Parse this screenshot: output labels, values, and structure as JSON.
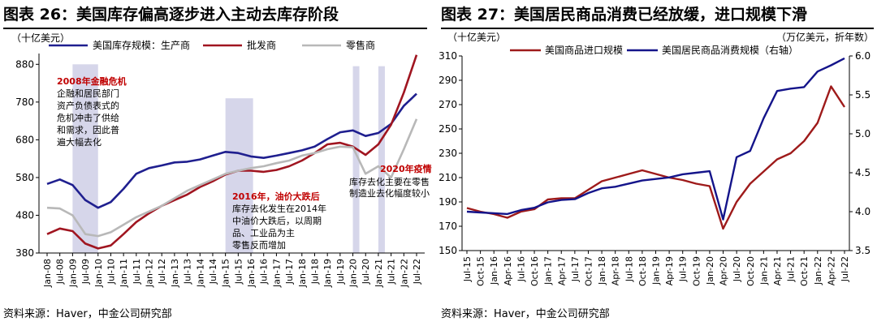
{
  "figures": [
    {
      "title": "图表 26：美国库存偏高逐步进入主动去库存阶段",
      "source": "资料来源：Haver，中金公司研究部"
    },
    {
      "title": "图表 27：美国居民商品消费已经放缓，进口规模下滑",
      "source": "资料来源：Haver，中金公司研究部"
    }
  ],
  "chart_data": [
    {
      "type": "line",
      "unit_label": "（十亿美元）",
      "ylim": [
        380,
        900
      ],
      "yticks": [
        380,
        480,
        580,
        680,
        780,
        880
      ],
      "x_range": [
        "Jan-08",
        "Jul-22"
      ],
      "xticks": [
        "Jan-08",
        "Jul-08",
        "Jan-09",
        "Jul-09",
        "Jan-10",
        "Jul-10",
        "Jan-11",
        "Jul-11",
        "Jan-12",
        "Jul-12",
        "Jan-13",
        "Jul-13",
        "Jan-14",
        "Jul-14",
        "Jan-15",
        "Jul-15",
        "Jan-16",
        "Jul-16",
        "Jan-17",
        "Jul-17",
        "Jan-18",
        "Jul-18",
        "Jan-19",
        "Jul-19",
        "Jan-20",
        "Jul-20",
        "Jan-21",
        "Jul-21",
        "Jan-22",
        "Jul-22"
      ],
      "shaded_periods": [
        [
          "Jan-09",
          "Jan-10"
        ],
        [
          "Jan-15",
          "Feb-16"
        ],
        [
          "Jan-20",
          "Apr-20"
        ],
        [
          "Jan-21",
          "Apr-21"
        ]
      ],
      "series": [
        {
          "name": "美国库存规模：生产商",
          "color": "#1f1f8f",
          "points": [
            [
              "Jan-08",
              563
            ],
            [
              "Jul-08",
              575
            ],
            [
              "Jan-09",
              560
            ],
            [
              "Jul-09",
              520
            ],
            [
              "Jan-10",
              500
            ],
            [
              "Jul-10",
              515
            ],
            [
              "Jan-11",
              550
            ],
            [
              "Jul-11",
              590
            ],
            [
              "Jan-12",
              605
            ],
            [
              "Jul-12",
              612
            ],
            [
              "Jan-13",
              620
            ],
            [
              "Jul-13",
              622
            ],
            [
              "Jan-14",
              628
            ],
            [
              "Jul-14",
              638
            ],
            [
              "Jan-15",
              648
            ],
            [
              "Jul-15",
              645
            ],
            [
              "Jan-16",
              636
            ],
            [
              "Jul-16",
              632
            ],
            [
              "Jan-17",
              638
            ],
            [
              "Jul-17",
              645
            ],
            [
              "Jan-18",
              652
            ],
            [
              "Jul-18",
              662
            ],
            [
              "Jan-19",
              682
            ],
            [
              "Jul-19",
              700
            ],
            [
              "Jan-20",
              705
            ],
            [
              "Jul-20",
              690
            ],
            [
              "Jan-21",
              698
            ],
            [
              "Jul-21",
              722
            ],
            [
              "Jan-22",
              770
            ],
            [
              "Jul-22",
              802
            ]
          ]
        },
        {
          "name": "批发商",
          "color": "#a01520",
          "points": [
            [
              "Jan-08",
              430
            ],
            [
              "Jul-08",
              445
            ],
            [
              "Jan-09",
              438
            ],
            [
              "Jul-09",
              405
            ],
            [
              "Jan-10",
              392
            ],
            [
              "Jul-10",
              400
            ],
            [
              "Jan-11",
              430
            ],
            [
              "Jul-11",
              462
            ],
            [
              "Jan-12",
              485
            ],
            [
              "Jul-12",
              505
            ],
            [
              "Jan-13",
              520
            ],
            [
              "Jul-13",
              535
            ],
            [
              "Jan-14",
              555
            ],
            [
              "Jul-14",
              570
            ],
            [
              "Jan-15",
              588
            ],
            [
              "Jul-15",
              598
            ],
            [
              "Jan-16",
              598
            ],
            [
              "Jul-16",
              595
            ],
            [
              "Jan-17",
              600
            ],
            [
              "Jul-17",
              610
            ],
            [
              "Jan-18",
              625
            ],
            [
              "Jul-18",
              645
            ],
            [
              "Jan-19",
              668
            ],
            [
              "Jul-19",
              672
            ],
            [
              "Jan-20",
              662
            ],
            [
              "Jul-20",
              640
            ],
            [
              "Jan-21",
              668
            ],
            [
              "Jul-21",
              720
            ],
            [
              "Jan-22",
              805
            ],
            [
              "Jul-22",
              905
            ]
          ]
        },
        {
          "name": "零售商",
          "color": "#b8b8b8",
          "points": [
            [
              "Jan-08",
              500
            ],
            [
              "Jul-08",
              498
            ],
            [
              "Jan-09",
              480
            ],
            [
              "Jul-09",
              430
            ],
            [
              "Jan-10",
              425
            ],
            [
              "Jul-10",
              435
            ],
            [
              "Jan-11",
              455
            ],
            [
              "Jul-11",
              475
            ],
            [
              "Jan-12",
              490
            ],
            [
              "Jul-12",
              505
            ],
            [
              "Jan-13",
              525
            ],
            [
              "Jul-13",
              545
            ],
            [
              "Jan-14",
              560
            ],
            [
              "Jul-14",
              575
            ],
            [
              "Jan-15",
              590
            ],
            [
              "Jul-15",
              598
            ],
            [
              "Jan-16",
              605
            ],
            [
              "Jul-16",
              610
            ],
            [
              "Jan-17",
              618
            ],
            [
              "Jul-17",
              625
            ],
            [
              "Jan-18",
              638
            ],
            [
              "Jul-18",
              645
            ],
            [
              "Jan-19",
              655
            ],
            [
              "Jul-19",
              662
            ],
            [
              "Jan-20",
              660
            ],
            [
              "Jul-20",
              590
            ],
            [
              "Jan-21",
              610
            ],
            [
              "Jul-21",
              580
            ],
            [
              "Jan-22",
              655
            ],
            [
              "Jul-22",
              735
            ]
          ]
        }
      ],
      "annotations": [
        {
          "title": "2008年金融危机",
          "lines": [
            "企融和居民部门",
            "资产负债表式的",
            "危机冲击了供给",
            "和需求，因此普",
            "遍大幅去化"
          ]
        },
        {
          "title": "2016年，油价大跌后",
          "lines": [
            "库存去化发生在2014年",
            "中油价大跌后，以周期",
            "品、工业品为主",
            "零售反而增加"
          ]
        },
        {
          "title": "2020年疫情",
          "lines": [
            "库存去化主要在零售",
            "制造业去化幅度较小"
          ]
        }
      ]
    },
    {
      "type": "line",
      "unit_label": "（十亿美元）",
      "unit_label_right": "（万亿美元，折年数）",
      "ylim": [
        150,
        310
      ],
      "yticks": [
        150,
        170,
        190,
        210,
        230,
        250,
        270,
        290,
        310
      ],
      "y2lim": [
        3.5,
        6.0
      ],
      "y2ticks": [
        3.5,
        4.0,
        4.5,
        5.0,
        5.5,
        6.0
      ],
      "x_range": [
        "Jul-15",
        "Jul-22"
      ],
      "xticks": [
        "Jul-15",
        "Oct-15",
        "Jan-16",
        "Apr-16",
        "Jul-16",
        "Oct-16",
        "Jan-17",
        "Apr-17",
        "Jul-17",
        "Oct-17",
        "Jan-18",
        "Apr-18",
        "Jul-18",
        "Oct-18",
        "Jan-19",
        "Apr-19",
        "Jul-19",
        "Oct-19",
        "Jan-20",
        "Apr-20",
        "Jul-20",
        "Oct-20",
        "Jan-21",
        "Apr-21",
        "Jul-21",
        "Oct-21",
        "Jan-22",
        "Apr-22",
        "Jul-22"
      ],
      "series": [
        {
          "name": "美国商品进口规模",
          "color": "#9e1a1a",
          "axis": "left",
          "points": [
            [
              "Jul-15",
              185
            ],
            [
              "Oct-15",
              182
            ],
            [
              "Jan-16",
              180
            ],
            [
              "Apr-16",
              177
            ],
            [
              "Jul-16",
              182
            ],
            [
              "Oct-16",
              184
            ],
            [
              "Jan-17",
              192
            ],
            [
              "Apr-17",
              193
            ],
            [
              "Jul-17",
              193
            ],
            [
              "Oct-17",
              200
            ],
            [
              "Jan-18",
              207
            ],
            [
              "Apr-18",
              210
            ],
            [
              "Jul-18",
              213
            ],
            [
              "Oct-18",
              216
            ],
            [
              "Jan-19",
              213
            ],
            [
              "Apr-19",
              210
            ],
            [
              "Jul-19",
              208
            ],
            [
              "Oct-19",
              205
            ],
            [
              "Jan-20",
              203
            ],
            [
              "Apr-20",
              168
            ],
            [
              "Jul-20",
              190
            ],
            [
              "Oct-20",
              205
            ],
            [
              "Jan-21",
              215
            ],
            [
              "Apr-21",
              225
            ],
            [
              "Jul-21",
              230
            ],
            [
              "Oct-21",
              240
            ],
            [
              "Jan-22",
              255
            ],
            [
              "Apr-22",
              285
            ],
            [
              "Jul-22",
              268
            ]
          ]
        },
        {
          "name": "美国居民商品消费规模（右轴）",
          "color": "#14148a",
          "axis": "right",
          "points": [
            [
              "Jul-15",
              4.0
            ],
            [
              "Oct-15",
              3.99
            ],
            [
              "Jan-16",
              3.98
            ],
            [
              "Apr-16",
              3.97
            ],
            [
              "Jul-16",
              4.02
            ],
            [
              "Oct-16",
              4.05
            ],
            [
              "Jan-17",
              4.12
            ],
            [
              "Apr-17",
              4.15
            ],
            [
              "Jul-17",
              4.16
            ],
            [
              "Oct-17",
              4.24
            ],
            [
              "Jan-18",
              4.3
            ],
            [
              "Apr-18",
              4.32
            ],
            [
              "Jul-18",
              4.36
            ],
            [
              "Oct-18",
              4.4
            ],
            [
              "Jan-19",
              4.42
            ],
            [
              "Apr-19",
              4.44
            ],
            [
              "Jul-19",
              4.48
            ],
            [
              "Oct-19",
              4.5
            ],
            [
              "Jan-20",
              4.52
            ],
            [
              "Apr-20",
              3.9
            ],
            [
              "Jul-20",
              4.7
            ],
            [
              "Oct-20",
              4.78
            ],
            [
              "Jan-21",
              5.2
            ],
            [
              "Apr-21",
              5.55
            ],
            [
              "Jul-21",
              5.58
            ],
            [
              "Oct-21",
              5.6
            ],
            [
              "Jan-22",
              5.8
            ],
            [
              "Apr-22",
              5.88
            ],
            [
              "Jul-22",
              5.97
            ]
          ]
        }
      ]
    }
  ]
}
